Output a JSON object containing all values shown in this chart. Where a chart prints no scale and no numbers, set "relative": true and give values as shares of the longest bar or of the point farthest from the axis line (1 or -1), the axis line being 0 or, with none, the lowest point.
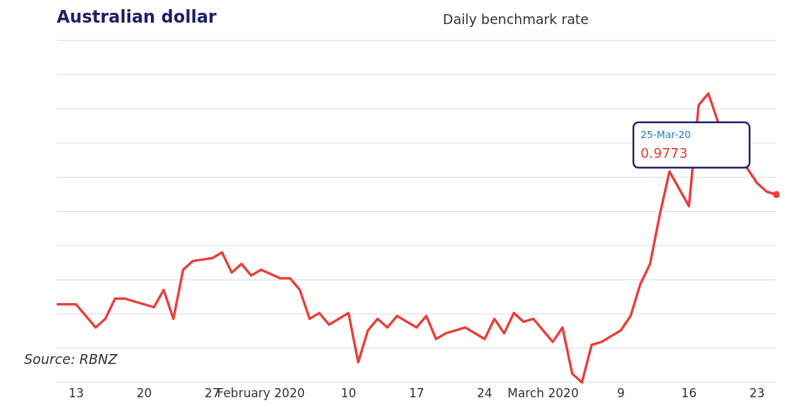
{
  "chart_data": {
    "type": "line",
    "title": "Australian dollar",
    "subtitle": "Daily benchmark rate",
    "relative": true,
    "grid": "y",
    "legend": false,
    "marker": "none",
    "line_style": "solid",
    "x": [
      "2020-01-11",
      "2020-01-13",
      "2020-01-15",
      "2020-01-16",
      "2020-01-17",
      "2020-01-18",
      "2020-01-21",
      "2020-01-22",
      "2020-01-23",
      "2020-01-24",
      "2020-01-25",
      "2020-01-27",
      "2020-01-28",
      "2020-01-29",
      "2020-01-30",
      "2020-01-31",
      "2020-02-01",
      "2020-02-03",
      "2020-02-04",
      "2020-02-05",
      "2020-02-06",
      "2020-02-07",
      "2020-02-08",
      "2020-02-10",
      "2020-02-11",
      "2020-02-12",
      "2020-02-13",
      "2020-02-14",
      "2020-02-15",
      "2020-02-17",
      "2020-02-18",
      "2020-02-19",
      "2020-02-20",
      "2020-02-21",
      "2020-02-22",
      "2020-02-24",
      "2020-02-25",
      "2020-02-26",
      "2020-02-27",
      "2020-02-28",
      "2020-02-29",
      "2020-03-02",
      "2020-03-03",
      "2020-03-04",
      "2020-03-05",
      "2020-03-06",
      "2020-03-07",
      "2020-03-09",
      "2020-03-10",
      "2020-03-11",
      "2020-03-12",
      "2020-03-13",
      "2020-03-14",
      "2020-03-16",
      "2020-03-17",
      "2020-03-18",
      "2020-03-19",
      "2020-03-22",
      "2020-03-23",
      "2020-03-24",
      "2020-03-25"
    ],
    "series": [
      {
        "color": "#e8403a",
        "values": [
          0.27,
          0.27,
          0.19,
          0.22,
          0.29,
          0.29,
          0.26,
          0.32,
          0.22,
          0.39,
          0.42,
          0.43,
          0.45,
          0.38,
          0.41,
          0.37,
          0.39,
          0.36,
          0.36,
          0.32,
          0.22,
          0.24,
          0.2,
          0.24,
          0.07,
          0.18,
          0.22,
          0.19,
          0.23,
          0.19,
          0.23,
          0.15,
          0.17,
          0.18,
          0.19,
          0.15,
          0.22,
          0.17,
          0.24,
          0.21,
          0.22,
          0.14,
          0.19,
          0.03,
          0,
          0.13,
          0.14,
          0.18,
          0.23,
          0.34,
          0.41,
          0.58,
          0.73,
          0.61,
          0.96,
          1,
          0.9,
          0.74,
          0.69,
          0.66,
          0.65
        ]
      }
    ],
    "xlim": [
      "2020-01-11",
      "2020-03-25"
    ],
    "xticks": [
      {
        "value": "2020-01-13",
        "label": "13"
      },
      {
        "value": "2020-01-20",
        "label": "20"
      },
      {
        "value": "2020-01-27",
        "label": "27"
      },
      {
        "value": "2020-02-01",
        "label": "February 2020"
      },
      {
        "value": "2020-02-10",
        "label": "10"
      },
      {
        "value": "2020-02-17",
        "label": "17"
      },
      {
        "value": "2020-02-24",
        "label": "24"
      },
      {
        "value": "2020-03-01",
        "label": "March 2020"
      },
      {
        "value": "2020-03-09",
        "label": "9"
      },
      {
        "value": "2020-03-16",
        "label": "16"
      },
      {
        "value": "2020-03-23",
        "label": "23"
      }
    ],
    "annotations": [
      "25-Mar-20\n0.9773",
      "Source: RBNZ"
    ]
  }
}
